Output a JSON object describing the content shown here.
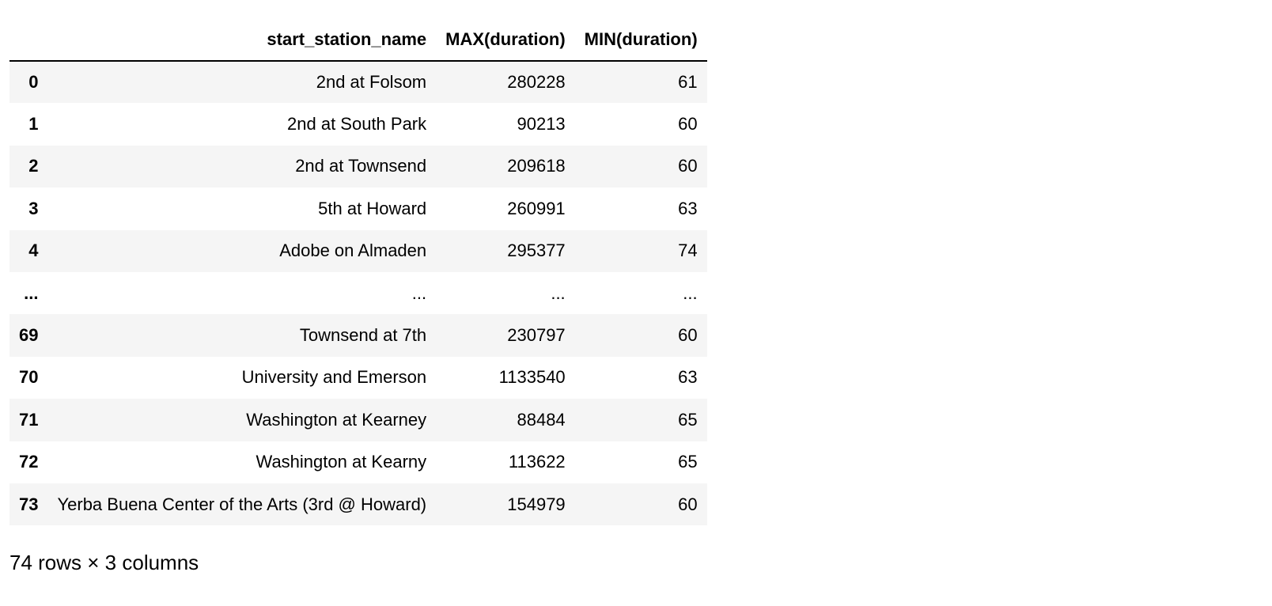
{
  "table": {
    "columns": {
      "index": "",
      "start_station_name": "start_station_name",
      "max_duration": "MAX(duration)",
      "min_duration": "MIN(duration)"
    },
    "rows": [
      {
        "index": "0",
        "start_station_name": "2nd at Folsom",
        "max_duration": "280228",
        "min_duration": "61"
      },
      {
        "index": "1",
        "start_station_name": "2nd at South Park",
        "max_duration": "90213",
        "min_duration": "60"
      },
      {
        "index": "2",
        "start_station_name": "2nd at Townsend",
        "max_duration": "209618",
        "min_duration": "60"
      },
      {
        "index": "3",
        "start_station_name": "5th at Howard",
        "max_duration": "260991",
        "min_duration": "63"
      },
      {
        "index": "4",
        "start_station_name": "Adobe on Almaden",
        "max_duration": "295377",
        "min_duration": "74"
      },
      {
        "index": "...",
        "start_station_name": "...",
        "max_duration": "...",
        "min_duration": "..."
      },
      {
        "index": "69",
        "start_station_name": "Townsend at 7th",
        "max_duration": "230797",
        "min_duration": "60"
      },
      {
        "index": "70",
        "start_station_name": "University and Emerson",
        "max_duration": "1133540",
        "min_duration": "63"
      },
      {
        "index": "71",
        "start_station_name": "Washington at Kearney",
        "max_duration": "88484",
        "min_duration": "65"
      },
      {
        "index": "72",
        "start_station_name": "Washington at Kearny",
        "max_duration": "113622",
        "min_duration": "65"
      },
      {
        "index": "73",
        "start_station_name": "Yerba Buena Center of the Arts (3rd @ Howard)",
        "max_duration": "154979",
        "min_duration": "60"
      }
    ]
  },
  "footer": {
    "shape_text": "74 rows × 3 columns"
  }
}
